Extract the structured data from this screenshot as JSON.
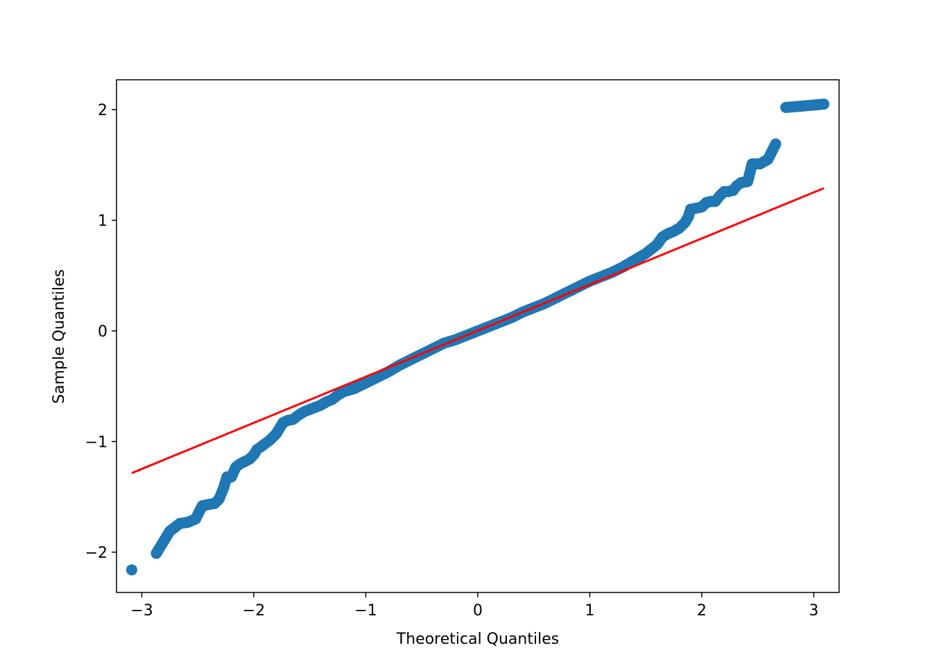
{
  "chart_data": {
    "type": "scatter",
    "title": "",
    "xlabel": "Theoretical Quantiles",
    "ylabel": "Sample Quantiles",
    "xlim": [
      -3.226,
      3.226
    ],
    "ylim": [
      -2.364,
      2.27
    ],
    "xticks": [
      -3,
      -2,
      -1,
      0,
      1,
      2,
      3
    ],
    "xtick_labels": [
      "−3",
      "−2",
      "−1",
      "0",
      "1",
      "2",
      "3"
    ],
    "yticks": [
      -2,
      -1,
      0,
      1,
      2
    ],
    "ytick_labels": [
      "−2",
      "−1",
      "0",
      "1",
      "2"
    ],
    "grid": false,
    "point_color": "#1f77b4",
    "line_color": "#ff0000",
    "reference_line": {
      "x": [
        -3.09,
        3.09
      ],
      "y": [
        -1.285,
        1.29
      ]
    },
    "points": [
      [
        -3.09,
        -2.16
      ],
      [
        -2.87,
        -2.01
      ],
      [
        -2.75,
        -1.81
      ],
      [
        -2.66,
        -1.74
      ],
      [
        -2.59,
        -1.73
      ],
      [
        -2.52,
        -1.7
      ],
      [
        -2.46,
        -1.58
      ],
      [
        -2.41,
        -1.57
      ],
      [
        -2.35,
        -1.56
      ],
      [
        -2.31,
        -1.52
      ],
      [
        -2.27,
        -1.42
      ],
      [
        -2.24,
        -1.32
      ],
      [
        -2.2,
        -1.32
      ],
      [
        -2.16,
        -1.23
      ],
      [
        -2.12,
        -1.2
      ],
      [
        -2.08,
        -1.18
      ],
      [
        -2.04,
        -1.16
      ],
      [
        -2.0,
        -1.12
      ],
      [
        -1.97,
        -1.07
      ],
      [
        -1.94,
        -1.05
      ],
      [
        -1.9,
        -1.02
      ],
      [
        -1.86,
        -0.99
      ],
      [
        -1.83,
        -0.96
      ],
      [
        -1.8,
        -0.93
      ],
      [
        -1.77,
        -0.88
      ],
      [
        -1.74,
        -0.83
      ],
      [
        -1.7,
        -0.81
      ],
      [
        -1.65,
        -0.8
      ],
      [
        -1.6,
        -0.76
      ],
      [
        -1.55,
        -0.73
      ],
      [
        -1.5,
        -0.71
      ],
      [
        -1.45,
        -0.69
      ],
      [
        -1.4,
        -0.67
      ],
      [
        -1.35,
        -0.64
      ],
      [
        -1.3,
        -0.62
      ],
      [
        -1.25,
        -0.58
      ],
      [
        -1.2,
        -0.55
      ],
      [
        -1.1,
        -0.52
      ],
      [
        -1.0,
        -0.47
      ],
      [
        -0.9,
        -0.42
      ],
      [
        -0.8,
        -0.37
      ],
      [
        -0.7,
        -0.31
      ],
      [
        -0.6,
        -0.26
      ],
      [
        -0.5,
        -0.21
      ],
      [
        -0.4,
        -0.16
      ],
      [
        -0.3,
        -0.11
      ],
      [
        -0.2,
        -0.08
      ],
      [
        -0.1,
        -0.04
      ],
      [
        0.0,
        0.0
      ],
      [
        0.1,
        0.04
      ],
      [
        0.2,
        0.08
      ],
      [
        0.3,
        0.12
      ],
      [
        0.4,
        0.17
      ],
      [
        0.5,
        0.21
      ],
      [
        0.6,
        0.25
      ],
      [
        0.7,
        0.3
      ],
      [
        0.8,
        0.35
      ],
      [
        0.9,
        0.4
      ],
      [
        1.0,
        0.45
      ],
      [
        1.1,
        0.49
      ],
      [
        1.2,
        0.53
      ],
      [
        1.3,
        0.58
      ],
      [
        1.4,
        0.64
      ],
      [
        1.5,
        0.7
      ],
      [
        1.55,
        0.74
      ],
      [
        1.6,
        0.78
      ],
      [
        1.65,
        0.85
      ],
      [
        1.7,
        0.88
      ],
      [
        1.75,
        0.9
      ],
      [
        1.8,
        0.93
      ],
      [
        1.85,
        0.98
      ],
      [
        1.88,
        1.03
      ],
      [
        1.9,
        1.1
      ],
      [
        1.95,
        1.11
      ],
      [
        2.0,
        1.12
      ],
      [
        2.04,
        1.16
      ],
      [
        2.08,
        1.17
      ],
      [
        2.12,
        1.17
      ],
      [
        2.16,
        1.22
      ],
      [
        2.2,
        1.26
      ],
      [
        2.24,
        1.26
      ],
      [
        2.28,
        1.27
      ],
      [
        2.31,
        1.31
      ],
      [
        2.35,
        1.34
      ],
      [
        2.41,
        1.35
      ],
      [
        2.45,
        1.51
      ],
      [
        2.52,
        1.51
      ],
      [
        2.59,
        1.55
      ],
      [
        2.66,
        1.69
      ],
      [
        2.75,
        2.02
      ],
      [
        2.87,
        2.03
      ],
      [
        3.09,
        2.05
      ]
    ]
  }
}
